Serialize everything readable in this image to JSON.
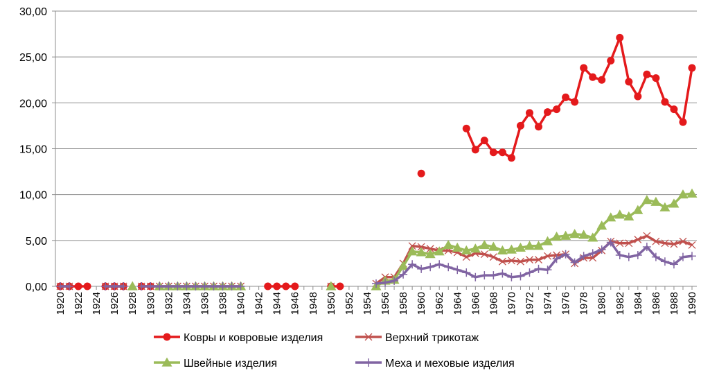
{
  "chart_data": {
    "type": "line",
    "title": "",
    "xlabel": "",
    "ylabel": "",
    "ylim": [
      0,
      30
    ],
    "yticks": [
      "0,00",
      "5,00",
      "10,00",
      "15,00",
      "20,00",
      "25,00",
      "30,00"
    ],
    "xticks": [
      "1920",
      "1922",
      "1924",
      "1926",
      "1928",
      "1930",
      "1932",
      "1934",
      "1936",
      "1938",
      "1940",
      "1942",
      "1944",
      "1946",
      "1948",
      "1950",
      "1952",
      "1954",
      "1956",
      "1958",
      "1960",
      "1962",
      "1964",
      "1966",
      "1968",
      "1970",
      "1972",
      "1974",
      "1976",
      "1978",
      "1980",
      "1982",
      "1984",
      "1986",
      "1988",
      "1990"
    ],
    "grid": "horizontal",
    "legend": "bottom",
    "series": [
      {
        "name": "Ковры и ковровые изделия",
        "color": "#e41a1c",
        "marker": "circle",
        "points": [
          [
            1920,
            0
          ],
          [
            1921,
            0
          ],
          [
            1922,
            0
          ],
          [
            1923,
            0
          ],
          [
            1925,
            0
          ],
          [
            1926,
            0
          ],
          [
            1927,
            0
          ],
          [
            1929,
            0
          ],
          [
            1930,
            0
          ],
          [
            1943,
            0
          ],
          [
            1944,
            0
          ],
          [
            1945,
            0
          ],
          [
            1946,
            0
          ],
          [
            1950,
            0
          ],
          [
            1951,
            0
          ],
          [
            1960,
            12.3
          ],
          [
            1965,
            17.2
          ],
          [
            1966,
            14.9
          ],
          [
            1967,
            15.9
          ],
          [
            1968,
            14.6
          ],
          [
            1969,
            14.6
          ],
          [
            1970,
            14
          ],
          [
            1971,
            17.5
          ],
          [
            1972,
            18.9
          ],
          [
            1973,
            17.4
          ],
          [
            1974,
            19
          ],
          [
            1975,
            19.3
          ],
          [
            1976,
            20.6
          ],
          [
            1977,
            20.1
          ],
          [
            1978,
            23.8
          ],
          [
            1979,
            22.8
          ],
          [
            1980,
            22.5
          ],
          [
            1981,
            24.6
          ],
          [
            1982,
            27.1
          ],
          [
            1983,
            22.3
          ],
          [
            1984,
            20.7
          ],
          [
            1985,
            23.1
          ],
          [
            1986,
            22.7
          ],
          [
            1987,
            20.1
          ],
          [
            1988,
            19.3
          ],
          [
            1989,
            17.9
          ],
          [
            1990,
            23.8
          ]
        ]
      },
      {
        "name": "Верхний трикотаж",
        "color": "#c0504d",
        "marker": "x",
        "points": [
          [
            1920,
            0
          ],
          [
            1921,
            0
          ],
          [
            1925,
            0
          ],
          [
            1926,
            0
          ],
          [
            1927,
            0
          ],
          [
            1929,
            0
          ],
          [
            1930,
            0
          ],
          [
            1931,
            0
          ],
          [
            1932,
            0
          ],
          [
            1933,
            0
          ],
          [
            1934,
            0
          ],
          [
            1935,
            0
          ],
          [
            1936,
            0
          ],
          [
            1937,
            0
          ],
          [
            1938,
            0
          ],
          [
            1939,
            0
          ],
          [
            1940,
            0
          ],
          [
            1950,
            0
          ],
          [
            1955,
            0.3
          ],
          [
            1956,
            1
          ],
          [
            1957,
            1
          ],
          [
            1958,
            2.5
          ],
          [
            1959,
            4.4
          ],
          [
            1960,
            4.3
          ],
          [
            1961,
            4.1
          ],
          [
            1962,
            3.9
          ],
          [
            1963,
            3.9
          ],
          [
            1964,
            3.7
          ],
          [
            1965,
            3.2
          ],
          [
            1966,
            3.6
          ],
          [
            1967,
            3.5
          ],
          [
            1968,
            3.2
          ],
          [
            1969,
            2.7
          ],
          [
            1970,
            2.8
          ],
          [
            1971,
            2.7
          ],
          [
            1972,
            2.9
          ],
          [
            1973,
            2.9
          ],
          [
            1974,
            3.3
          ],
          [
            1975,
            3.4
          ],
          [
            1976,
            3.5
          ],
          [
            1977,
            2.5
          ],
          [
            1978,
            3.1
          ],
          [
            1979,
            3.1
          ],
          [
            1980,
            3.9
          ],
          [
            1981,
            4.9
          ],
          [
            1982,
            4.7
          ],
          [
            1983,
            4.7
          ],
          [
            1984,
            5.1
          ],
          [
            1985,
            5.5
          ],
          [
            1986,
            4.9
          ],
          [
            1987,
            4.7
          ],
          [
            1988,
            4.6
          ],
          [
            1989,
            4.9
          ],
          [
            1990,
            4.5
          ]
        ]
      },
      {
        "name": "Швейные изделия",
        "color": "#9bbb59",
        "marker": "triangle",
        "points": [
          [
            1928,
            0
          ],
          [
            1931,
            0
          ],
          [
            1932,
            0
          ],
          [
            1933,
            0
          ],
          [
            1934,
            0
          ],
          [
            1935,
            0
          ],
          [
            1936,
            0
          ],
          [
            1937,
            0
          ],
          [
            1938,
            0
          ],
          [
            1939,
            0
          ],
          [
            1940,
            0
          ],
          [
            1950,
            0
          ],
          [
            1955,
            0
          ],
          [
            1956,
            0.6
          ],
          [
            1957,
            0.7
          ],
          [
            1958,
            2.2
          ],
          [
            1959,
            3.8
          ],
          [
            1960,
            3.7
          ],
          [
            1961,
            3.5
          ],
          [
            1962,
            3.8
          ],
          [
            1963,
            4.5
          ],
          [
            1964,
            4.2
          ],
          [
            1965,
            3.9
          ],
          [
            1966,
            4.1
          ],
          [
            1967,
            4.5
          ],
          [
            1968,
            4.3
          ],
          [
            1969,
            3.9
          ],
          [
            1970,
            4
          ],
          [
            1971,
            4.2
          ],
          [
            1972,
            4.4
          ],
          [
            1973,
            4.4
          ],
          [
            1974,
            4.9
          ],
          [
            1975,
            5.4
          ],
          [
            1976,
            5.5
          ],
          [
            1977,
            5.7
          ],
          [
            1978,
            5.6
          ],
          [
            1979,
            5.3
          ],
          [
            1980,
            6.6
          ],
          [
            1981,
            7.5
          ],
          [
            1982,
            7.8
          ],
          [
            1983,
            7.6
          ],
          [
            1984,
            8.3
          ],
          [
            1985,
            9.4
          ],
          [
            1986,
            9.2
          ],
          [
            1987,
            8.6
          ],
          [
            1988,
            9
          ],
          [
            1989,
            10
          ],
          [
            1990,
            10.1
          ]
        ]
      },
      {
        "name": "Меха и меховые изделия",
        "color": "#8064a2",
        "marker": "plus",
        "points": [
          [
            1920,
            0
          ],
          [
            1921,
            0
          ],
          [
            1925,
            0
          ],
          [
            1926,
            0
          ],
          [
            1927,
            0
          ],
          [
            1929,
            0
          ],
          [
            1930,
            0
          ],
          [
            1931,
            0
          ],
          [
            1932,
            0
          ],
          [
            1933,
            0
          ],
          [
            1934,
            0
          ],
          [
            1935,
            0
          ],
          [
            1936,
            0
          ],
          [
            1937,
            0
          ],
          [
            1938,
            0
          ],
          [
            1939,
            0
          ],
          [
            1940,
            0
          ],
          [
            1955,
            0.3
          ],
          [
            1956,
            0.4
          ],
          [
            1957,
            0.6
          ],
          [
            1958,
            1.3
          ],
          [
            1959,
            2.4
          ],
          [
            1960,
            1.9
          ],
          [
            1961,
            2.1
          ],
          [
            1962,
            2.4
          ],
          [
            1963,
            2.1
          ],
          [
            1964,
            1.8
          ],
          [
            1965,
            1.5
          ],
          [
            1966,
            1
          ],
          [
            1967,
            1.2
          ],
          [
            1968,
            1.2
          ],
          [
            1969,
            1.4
          ],
          [
            1970,
            1
          ],
          [
            1971,
            1.1
          ],
          [
            1972,
            1.5
          ],
          [
            1973,
            1.9
          ],
          [
            1974,
            1.8
          ],
          [
            1975,
            3
          ],
          [
            1976,
            3.5
          ],
          [
            1977,
            2.6
          ],
          [
            1978,
            3.3
          ],
          [
            1979,
            3.6
          ],
          [
            1980,
            4
          ],
          [
            1981,
            4.8
          ],
          [
            1982,
            3.4
          ],
          [
            1983,
            3.2
          ],
          [
            1984,
            3.4
          ],
          [
            1985,
            4.3
          ],
          [
            1986,
            3.2
          ],
          [
            1987,
            2.7
          ],
          [
            1988,
            2.4
          ],
          [
            1989,
            3.2
          ],
          [
            1990,
            3.3
          ]
        ]
      }
    ]
  }
}
